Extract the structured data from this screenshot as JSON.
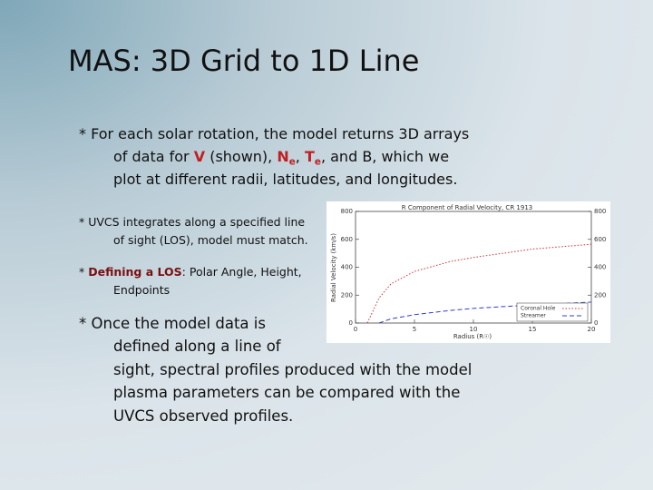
{
  "header": {
    "title": "MAS: 3D Grid to 1D Line"
  },
  "bullets": [
    {
      "lines": [
        [
          "* For each solar rotation, the model returns 3D arrays"
        ],
        [
          "of data for ",
          "V",
          " (shown), ",
          "N",
          "e",
          ", ",
          "T",
          "e",
          ", and B, which we"
        ],
        [
          "plot at different radii, latitudes, and longitudes."
        ]
      ]
    },
    {
      "lines": [
        [
          "* UVCS integrates along a specified line"
        ],
        [
          "of sight (LOS), model must match."
        ]
      ]
    },
    {
      "lines": [
        [
          "* ",
          "Defining a LOS",
          ": Polar Angle, Height,"
        ],
        [
          "Endpoints"
        ]
      ]
    },
    {
      "lines": [
        [
          "* Once the model data is"
        ],
        [
          "defined along a line of"
        ],
        [
          "sight, spectral profiles produced with the model"
        ],
        [
          "plasma parameters can be compared with the"
        ],
        [
          "UVCS observed profiles."
        ]
      ]
    }
  ],
  "chart_data": {
    "type": "line",
    "title": "R Component of Radial Velocity, CR 1913",
    "x_label": "Radius (R☉)",
    "y_label": "Radial Velocity (km/s)",
    "x": [
      1,
      2,
      3,
      5,
      8,
      10,
      15,
      20
    ],
    "series": [
      {
        "name": "Coronal Hole",
        "color": "#d03030",
        "values": [
          0,
          180,
          280,
          370,
          440,
          470,
          530,
          565
        ]
      },
      {
        "name": "Streamer",
        "color": "#3040c0",
        "values": [
          null,
          0,
          30,
          60,
          90,
          105,
          130,
          150
        ]
      }
    ],
    "xlim": [
      0,
      20
    ],
    "xticks": [
      0,
      5,
      10,
      15,
      20
    ],
    "ylim": [
      0,
      800
    ],
    "yticks": [
      0,
      200,
      400,
      600,
      800
    ],
    "y2lim": [
      0,
      800
    ],
    "y2ticks": [
      0,
      200,
      400,
      600,
      800
    ]
  }
}
